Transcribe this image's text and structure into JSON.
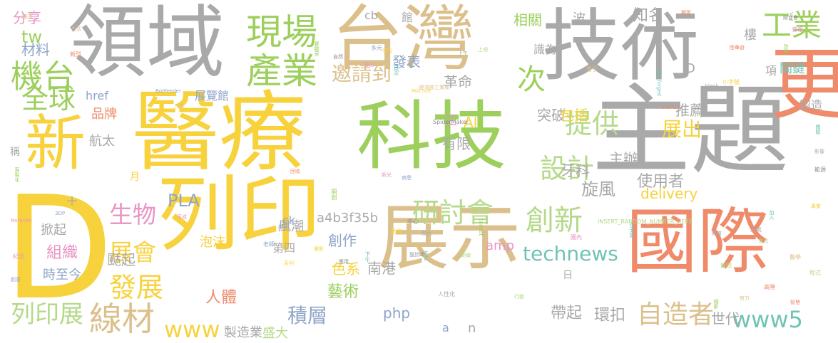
{
  "palette": {
    "gray": "#a9a9a9",
    "yellow": "#f7d23c",
    "tan": "#dcc08c",
    "salmon": "#ef8a6a",
    "green": "#9ccf5c",
    "lightgreen": "#b5d989",
    "teal": "#6fc3b5",
    "pink": "#e894c4",
    "blue": "#8fa5c9",
    "darkgray": "#8c8c8c"
  },
  "words": [
    {
      "t": "技術",
      "c": "gray"
    },
    {
      "t": "台灣",
      "c": "tan"
    },
    {
      "t": "領域",
      "c": "gray"
    },
    {
      "t": "醫療",
      "c": "yellow"
    },
    {
      "t": "科技",
      "c": "green"
    },
    {
      "t": "主題",
      "c": "gray"
    },
    {
      "t": "列印",
      "c": "yellow"
    },
    {
      "t": "展示",
      "c": "tan"
    },
    {
      "t": "國際",
      "c": "salmon"
    },
    {
      "t": "D",
      "c": "yellow"
    },
    {
      "t": "新",
      "c": "yellow"
    },
    {
      "t": "更",
      "c": "salmon"
    },
    {
      "t": "現場",
      "c": "green"
    },
    {
      "t": "產業",
      "c": "green"
    },
    {
      "t": "工業",
      "c": "green"
    },
    {
      "t": "機台",
      "c": "green"
    },
    {
      "t": "全球",
      "c": "green"
    },
    {
      "t": "研討會",
      "c": "lightgreen"
    },
    {
      "t": "創新",
      "c": "lightgreen"
    },
    {
      "t": "technews",
      "c": "teal"
    },
    {
      "t": "邀請到",
      "c": "tan"
    },
    {
      "t": "提供",
      "c": "lightgreen"
    },
    {
      "t": "設計",
      "c": "lightgreen"
    },
    {
      "t": "展出",
      "c": "yellow"
    },
    {
      "t": "自造者",
      "c": "tan"
    },
    {
      "t": "www5",
      "c": "teal"
    },
    {
      "t": "線材",
      "c": "tan"
    },
    {
      "t": "列印展",
      "c": "lightgreen"
    },
    {
      "t": "積層",
      "c": "blue"
    },
    {
      "t": "發展",
      "c": "yellow"
    },
    {
      "t": "展會",
      "c": "yellow"
    },
    {
      "t": "生物",
      "c": "pink"
    },
    {
      "t": "www",
      "c": "yellow"
    },
    {
      "t": "tw",
      "c": "green"
    },
    {
      "t": "分享",
      "c": "pink"
    },
    {
      "t": "材料",
      "c": "blue"
    },
    {
      "t": "相關",
      "c": "green"
    },
    {
      "t": "知名",
      "c": "gray"
    },
    {
      "t": "次",
      "c": "green"
    },
    {
      "t": "牙科",
      "c": "gray"
    },
    {
      "t": "主辦",
      "c": "gray"
    },
    {
      "t": "使用者",
      "c": "gray"
    },
    {
      "t": "delivery",
      "c": "yellow"
    },
    {
      "t": "旋風",
      "c": "gray"
    },
    {
      "t": "PLA",
      "c": "blue"
    },
    {
      "t": "a4b3f35b",
      "c": "gray"
    },
    {
      "t": "創作",
      "c": "blue"
    },
    {
      "t": "藝術",
      "c": "green"
    },
    {
      "t": "色系",
      "c": "yellow"
    },
    {
      "t": "南港",
      "c": "gray"
    },
    {
      "t": "php",
      "c": "blue"
    },
    {
      "t": "人體",
      "c": "salmon"
    },
    {
      "t": "品牌",
      "c": "salmon"
    },
    {
      "t": "航太",
      "c": "gray"
    },
    {
      "t": "AI",
      "c": "yellow"
    },
    {
      "t": "三",
      "c": "pink"
    },
    {
      "t": "革命",
      "c": "gray"
    },
    {
      "t": "有限",
      "c": "gray"
    },
    {
      "t": "發表",
      "c": "blue"
    },
    {
      "t": "突破",
      "c": "gray"
    },
    {
      "t": "包括",
      "c": "yellow"
    },
    {
      "t": "推薦",
      "c": "gray"
    },
    {
      "t": "帶起",
      "c": "gray"
    },
    {
      "t": "環扣",
      "c": "gray"
    },
    {
      "t": "世代",
      "c": "gray"
    },
    {
      "t": "組織",
      "c": "pink"
    },
    {
      "t": "颳起",
      "c": "gray"
    },
    {
      "t": "時至今",
      "c": "blue"
    },
    {
      "t": "掀起",
      "c": "gray"
    },
    {
      "t": "泡沫",
      "c": "yellow"
    },
    {
      "t": "風潮",
      "c": "gray"
    },
    {
      "t": "第四",
      "c": "gray"
    },
    {
      "t": "製造業",
      "c": "gray"
    },
    {
      "t": "盛大",
      "c": "lightgreen"
    },
    {
      "t": "amp",
      "c": "pink"
    },
    {
      "t": "ck",
      "c": "blue"
    },
    {
      "t": "n",
      "c": "gray"
    },
    {
      "t": "a",
      "c": "blue"
    },
    {
      "t": "稱",
      "c": "gray"
    },
    {
      "t": "月",
      "c": "yellow"
    },
    {
      "t": "cb",
      "c": "gray"
    },
    {
      "t": "館",
      "c": "gray"
    },
    {
      "t": "波",
      "c": "gray"
    },
    {
      "t": "樓",
      "c": "gray"
    },
    {
      "t": "關鍵",
      "c": "teal"
    },
    {
      "t": "項",
      "c": "gray"
    },
    {
      "t": "製造",
      "c": "gray"
    },
    {
      "t": "識為",
      "c": "gray"
    },
    {
      "t": "href",
      "c": "blue"
    },
    {
      "t": "日",
      "c": "gray"
    },
    {
      "t": "D",
      "c": "gray"
    },
    {
      "t": "展覽館",
      "c": "blue"
    },
    {
      "t": "＋",
      "c": "gray"
    }
  ],
  "tiny": [
    "加送",
    "獨家",
    "Ved",
    "會報",
    "BotFeeder",
    "MiiCraft",
    "SpiderMaker",
    "Markforged",
    "_blank",
    "INSERT_RANDOM_NUMBER_HERE",
    "經濟部工業局",
    "ecoPLA",
    "target",
    "Noraven",
    "3DP",
    "小字號",
    "綜合會",
    "亞太區",
    "大氣",
    "交流",
    "生活",
    "新型",
    "實驗室",
    "發出",
    "多元",
    "消光",
    "自然",
    "首次",
    "上午",
    "上吧",
    "嬰子",
    "陸華遊",
    "改變",
    "圓內",
    "部分",
    "電影",
    "中心",
    "加入",
    "教育",
    "醫院",
    "三維",
    "回收",
    "開創",
    "新光",
    "病患",
    "動物",
    "設計師",
    "方式",
    "人性化",
    "行動",
    "官方",
    "高階",
    "細節",
    "可成",
    "老師",
    "系列",
    "應用",
    "下午",
    "顏色",
    "範疇",
    "醫學",
    "智慧",
    "客製化",
    "紀念",
    "創意",
    "專業",
    "能源",
    "體驗",
    "影像",
    "程式"
  ]
}
